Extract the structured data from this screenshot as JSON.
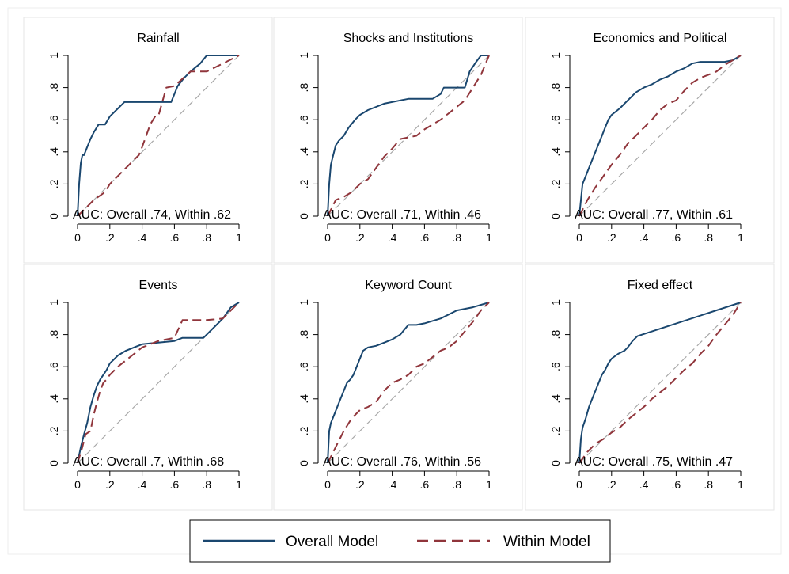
{
  "colors": {
    "overall": "#1a476f",
    "within": "#90353b",
    "diagonal": "#a6a6a6",
    "panel_border": "#e6e6e6",
    "axis": "#000000"
  },
  "x_ticks": [
    "0",
    ".2",
    ".4",
    ".6",
    ".8",
    "1"
  ],
  "y_ticks": [
    "0",
    ".2",
    ".4",
    ".6",
    ".8",
    "1"
  ],
  "legend": {
    "placement": "bottom-center",
    "items": [
      {
        "key": "overall",
        "label": "Overall Model",
        "style": "solid"
      },
      {
        "key": "within",
        "label": "Within Model",
        "style": "dashed"
      }
    ]
  },
  "chart_data": [
    {
      "type": "line",
      "title": "Rainfall",
      "annotation": "AUC: Overall .74, Within .62",
      "xlim": [
        0,
        1
      ],
      "ylim": [
        0,
        1
      ],
      "series": [
        {
          "name": "Overall Model",
          "x": [
            0,
            0.01,
            0.02,
            0.03,
            0.04,
            0.06,
            0.08,
            0.1,
            0.13,
            0.17,
            0.2,
            0.25,
            0.29,
            0.4,
            0.5,
            0.58,
            0.6,
            0.62,
            0.66,
            0.7,
            0.76,
            0.8,
            0.85,
            1.0
          ],
          "y": [
            0,
            0.2,
            0.33,
            0.38,
            0.38,
            0.43,
            0.48,
            0.52,
            0.57,
            0.57,
            0.62,
            0.67,
            0.71,
            0.71,
            0.71,
            0.71,
            0.76,
            0.81,
            0.86,
            0.9,
            0.95,
            1.0,
            1.0,
            1.0
          ]
        },
        {
          "name": "Within Model",
          "x": [
            0,
            0.05,
            0.1,
            0.17,
            0.2,
            0.25,
            0.3,
            0.35,
            0.38,
            0.4,
            0.45,
            0.48,
            0.5,
            0.55,
            0.6,
            0.7,
            0.8,
            0.9,
            1.0
          ],
          "y": [
            0,
            0.05,
            0.1,
            0.15,
            0.2,
            0.25,
            0.3,
            0.35,
            0.38,
            0.43,
            0.57,
            0.62,
            0.62,
            0.8,
            0.81,
            0.9,
            0.9,
            0.95,
            1.0
          ]
        }
      ]
    },
    {
      "type": "line",
      "title": "Shocks and Institutions",
      "annotation": "AUC: Overall .71, Within .46",
      "xlim": [
        0,
        1
      ],
      "ylim": [
        0,
        1
      ],
      "series": [
        {
          "name": "Overall Model",
          "x": [
            0,
            0.01,
            0.02,
            0.03,
            0.05,
            0.07,
            0.1,
            0.13,
            0.17,
            0.2,
            0.25,
            0.3,
            0.35,
            0.45,
            0.5,
            0.6,
            0.65,
            0.7,
            0.72,
            0.8,
            0.85,
            0.88,
            0.92,
            0.95,
            1.0
          ],
          "y": [
            0,
            0.2,
            0.32,
            0.36,
            0.44,
            0.47,
            0.5,
            0.55,
            0.6,
            0.63,
            0.66,
            0.68,
            0.7,
            0.72,
            0.73,
            0.73,
            0.73,
            0.76,
            0.8,
            0.8,
            0.8,
            0.9,
            0.96,
            1.0,
            1.0
          ]
        },
        {
          "name": "Within Model",
          "x": [
            0,
            0.05,
            0.1,
            0.15,
            0.2,
            0.25,
            0.3,
            0.35,
            0.4,
            0.45,
            0.5,
            0.55,
            0.6,
            0.65,
            0.7,
            0.75,
            0.8,
            0.85,
            0.9,
            0.95,
            1.0
          ],
          "y": [
            0,
            0.1,
            0.12,
            0.15,
            0.2,
            0.23,
            0.3,
            0.37,
            0.42,
            0.48,
            0.49,
            0.5,
            0.54,
            0.57,
            0.6,
            0.64,
            0.68,
            0.72,
            0.8,
            0.88,
            1.0
          ]
        }
      ]
    },
    {
      "type": "line",
      "title": "Economics and Political",
      "annotation": "AUC: Overall .77, Within .61",
      "xlim": [
        0,
        1
      ],
      "ylim": [
        0,
        1
      ],
      "series": [
        {
          "name": "Overall Model",
          "x": [
            0,
            0.02,
            0.04,
            0.06,
            0.08,
            0.1,
            0.12,
            0.14,
            0.16,
            0.18,
            0.2,
            0.25,
            0.3,
            0.35,
            0.4,
            0.45,
            0.5,
            0.55,
            0.6,
            0.65,
            0.7,
            0.75,
            0.8,
            0.9,
            0.95,
            1.0
          ],
          "y": [
            0,
            0.2,
            0.25,
            0.3,
            0.35,
            0.4,
            0.45,
            0.5,
            0.55,
            0.6,
            0.63,
            0.67,
            0.72,
            0.77,
            0.8,
            0.82,
            0.85,
            0.87,
            0.9,
            0.92,
            0.95,
            0.96,
            0.96,
            0.96,
            0.97,
            1.0
          ]
        },
        {
          "name": "Within Model",
          "x": [
            0,
            0.05,
            0.1,
            0.15,
            0.2,
            0.25,
            0.3,
            0.35,
            0.4,
            0.45,
            0.5,
            0.55,
            0.6,
            0.65,
            0.7,
            0.75,
            0.8,
            0.85,
            0.9,
            0.95,
            1.0
          ],
          "y": [
            0,
            0.1,
            0.18,
            0.25,
            0.32,
            0.38,
            0.45,
            0.5,
            0.55,
            0.6,
            0.66,
            0.7,
            0.72,
            0.78,
            0.83,
            0.86,
            0.88,
            0.9,
            0.94,
            0.97,
            1.0
          ]
        }
      ]
    },
    {
      "type": "line",
      "title": "Events",
      "annotation": "AUC: Overall .7, Within .68",
      "xlim": [
        0,
        1
      ],
      "ylim": [
        0,
        1
      ],
      "series": [
        {
          "name": "Overall Model",
          "x": [
            0,
            0.02,
            0.04,
            0.06,
            0.08,
            0.1,
            0.12,
            0.14,
            0.16,
            0.18,
            0.2,
            0.25,
            0.3,
            0.35,
            0.4,
            0.5,
            0.6,
            0.65,
            0.7,
            0.78,
            0.85,
            0.9,
            0.95,
            1.0
          ],
          "y": [
            0,
            0.1,
            0.18,
            0.25,
            0.35,
            0.42,
            0.48,
            0.52,
            0.55,
            0.58,
            0.62,
            0.67,
            0.7,
            0.72,
            0.74,
            0.75,
            0.76,
            0.78,
            0.78,
            0.78,
            0.85,
            0.9,
            0.97,
            1.0
          ]
        },
        {
          "name": "Within Model",
          "x": [
            0,
            0.03,
            0.05,
            0.08,
            0.1,
            0.12,
            0.14,
            0.16,
            0.18,
            0.2,
            0.25,
            0.3,
            0.35,
            0.4,
            0.45,
            0.5,
            0.6,
            0.65,
            0.7,
            0.8,
            0.9,
            0.95,
            1.0
          ],
          "y": [
            0,
            0.1,
            0.18,
            0.2,
            0.3,
            0.38,
            0.45,
            0.5,
            0.52,
            0.55,
            0.6,
            0.64,
            0.68,
            0.72,
            0.74,
            0.76,
            0.78,
            0.89,
            0.89,
            0.89,
            0.9,
            0.95,
            1.0
          ]
        }
      ]
    },
    {
      "type": "line",
      "title": "Keyword Count",
      "annotation": "AUC: Overall .76, Within .56",
      "xlim": [
        0,
        1
      ],
      "ylim": [
        0,
        1
      ],
      "series": [
        {
          "name": "Overall Model",
          "x": [
            0,
            0.01,
            0.02,
            0.04,
            0.06,
            0.08,
            0.1,
            0.12,
            0.14,
            0.16,
            0.18,
            0.2,
            0.22,
            0.25,
            0.3,
            0.35,
            0.4,
            0.45,
            0.5,
            0.55,
            0.6,
            0.7,
            0.8,
            0.9,
            1.0
          ],
          "y": [
            0,
            0.2,
            0.25,
            0.3,
            0.35,
            0.4,
            0.45,
            0.5,
            0.52,
            0.55,
            0.6,
            0.65,
            0.7,
            0.72,
            0.73,
            0.75,
            0.77,
            0.8,
            0.86,
            0.86,
            0.87,
            0.9,
            0.95,
            0.97,
            1.0
          ]
        },
        {
          "name": "Within Model",
          "x": [
            0,
            0.05,
            0.1,
            0.15,
            0.2,
            0.25,
            0.3,
            0.35,
            0.4,
            0.45,
            0.5,
            0.55,
            0.6,
            0.65,
            0.7,
            0.75,
            0.8,
            0.85,
            0.9,
            0.95,
            1.0
          ],
          "y": [
            0,
            0.1,
            0.2,
            0.28,
            0.33,
            0.35,
            0.38,
            0.45,
            0.5,
            0.52,
            0.55,
            0.6,
            0.62,
            0.66,
            0.7,
            0.72,
            0.76,
            0.82,
            0.88,
            0.95,
            1.0
          ]
        }
      ]
    },
    {
      "type": "line",
      "title": "Fixed effect",
      "annotation": "AUC: Overall .75, Within .47",
      "xlim": [
        0,
        1
      ],
      "ylim": [
        0,
        1
      ],
      "series": [
        {
          "name": "Overall Model",
          "x": [
            0,
            0.01,
            0.02,
            0.04,
            0.06,
            0.08,
            0.1,
            0.12,
            0.14,
            0.16,
            0.18,
            0.2,
            0.24,
            0.28,
            0.3,
            0.33,
            0.36,
            1.0
          ],
          "y": [
            0,
            0.15,
            0.22,
            0.28,
            0.35,
            0.4,
            0.45,
            0.5,
            0.55,
            0.58,
            0.62,
            0.65,
            0.68,
            0.7,
            0.72,
            0.76,
            0.79,
            1.0
          ]
        },
        {
          "name": "Within Model",
          "x": [
            0,
            0.05,
            0.1,
            0.15,
            0.2,
            0.25,
            0.3,
            0.35,
            0.4,
            0.45,
            0.5,
            0.55,
            0.6,
            0.65,
            0.7,
            0.75,
            0.8,
            0.85,
            0.9,
            0.95,
            1.0
          ],
          "y": [
            0,
            0.07,
            0.12,
            0.15,
            0.19,
            0.22,
            0.27,
            0.31,
            0.35,
            0.4,
            0.44,
            0.48,
            0.53,
            0.58,
            0.62,
            0.68,
            0.73,
            0.8,
            0.86,
            0.92,
            1.0
          ]
        }
      ]
    }
  ]
}
